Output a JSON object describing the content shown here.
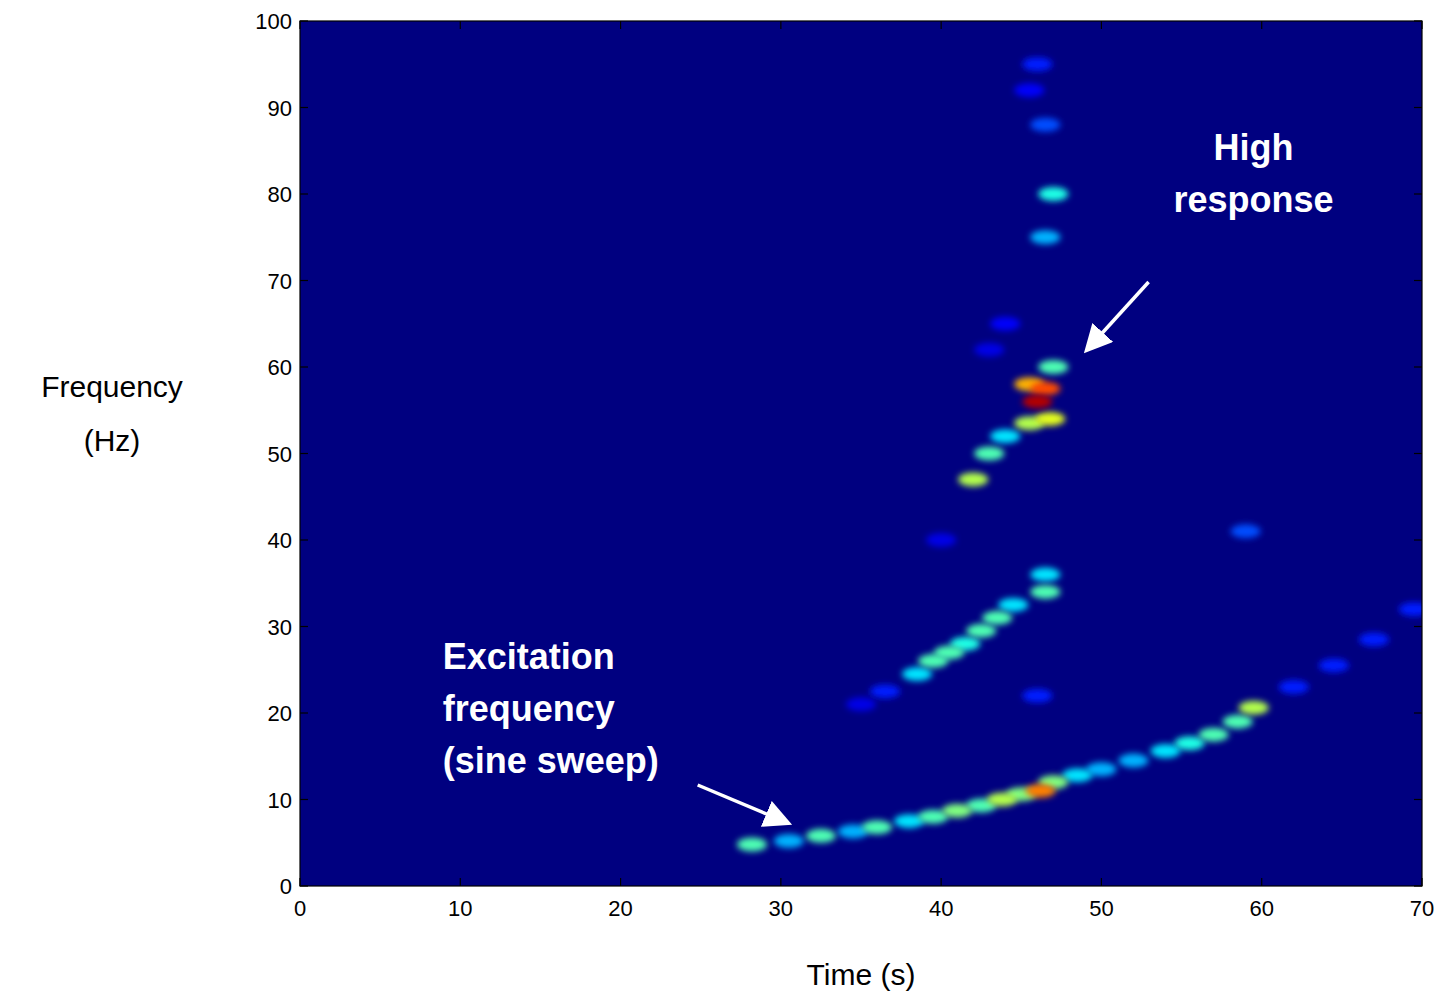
{
  "chart_data": {
    "type": "heatmap",
    "xlabel": "Time (s)",
    "ylabel": "Frequency (Hz)",
    "xlim": [
      0,
      70
    ],
    "ylim": [
      0,
      100
    ],
    "xticks": [
      0,
      10,
      20,
      30,
      40,
      50,
      60,
      70
    ],
    "yticks": [
      0,
      10,
      20,
      30,
      40,
      50,
      60,
      70,
      80,
      90,
      100
    ],
    "value_range": [
      0,
      1
    ],
    "x": [
      28.2,
      30.5,
      32.5,
      34.5,
      36,
      38,
      39.5,
      41,
      42.5,
      43.8,
      45,
      46.2,
      47,
      48.5,
      50,
      52,
      54,
      55.5,
      57,
      58.5,
      59.5,
      62,
      64.5,
      67,
      69.5,
      35,
      36.5,
      38.5,
      39.5,
      40.5,
      41.5,
      42.5,
      43.5,
      44.5,
      46.5,
      46.5,
      42,
      43,
      44,
      45.5,
      46,
      46.5,
      45.5,
      46.8,
      47,
      47,
      46.5,
      46.5,
      46,
      45.5,
      44,
      43,
      40,
      59,
      46
    ],
    "y": [
      4.8,
      5.2,
      5.8,
      6.3,
      6.8,
      7.5,
      8,
      8.7,
      9.3,
      10,
      10.6,
      11,
      12,
      12.8,
      13.5,
      14.5,
      15.6,
      16.5,
      17.5,
      19,
      20.6,
      23,
      25.5,
      28.5,
      32,
      21,
      22.5,
      24.5,
      26,
      27,
      28,
      29.5,
      31,
      32.5,
      34,
      36,
      47,
      50,
      52,
      53.5,
      56,
      57.5,
      58,
      54,
      60,
      80,
      75,
      88,
      95,
      92,
      65,
      62,
      40,
      41,
      22
    ],
    "values": [
      0.45,
      0.3,
      0.45,
      0.3,
      0.45,
      0.35,
      0.45,
      0.5,
      0.45,
      0.55,
      0.5,
      0.75,
      0.5,
      0.35,
      0.3,
      0.3,
      0.35,
      0.4,
      0.45,
      0.45,
      0.55,
      0.15,
      0.15,
      0.15,
      0.15,
      0.1,
      0.15,
      0.35,
      0.45,
      0.45,
      0.4,
      0.45,
      0.45,
      0.35,
      0.45,
      0.35,
      0.55,
      0.45,
      0.35,
      0.55,
      0.95,
      0.8,
      0.7,
      0.6,
      0.45,
      0.4,
      0.3,
      0.2,
      0.15,
      0.12,
      0.12,
      0.1,
      0.1,
      0.2,
      0.15
    ],
    "annotations": [
      {
        "text": "High response",
        "x": 49.2,
        "y": 62.2
      },
      {
        "text": "Excitation frequency (sine sweep)",
        "x": 30.3,
        "y": 7.4
      }
    ]
  }
}
